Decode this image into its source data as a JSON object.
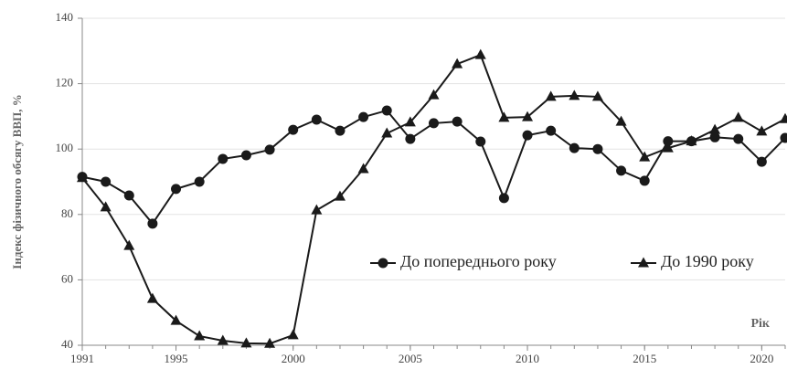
{
  "chart_data": {
    "type": "line",
    "y_label": "Індекс фізичного обсягу ВВП, %",
    "x_label": "Рік",
    "x": [
      1991,
      1992,
      1993,
      1994,
      1995,
      1996,
      1997,
      1998,
      1999,
      2000,
      2001,
      2002,
      2003,
      2004,
      2005,
      2006,
      2007,
      2008,
      2009,
      2010,
      2011,
      2012,
      2013,
      2014,
      2015,
      2016,
      2017,
      2018,
      2019,
      2020,
      2021
    ],
    "series": [
      {
        "name": "До попереднього року",
        "color": "#1a1a1a",
        "marker": "circle",
        "values": [
          91.5,
          90,
          85.8,
          77.2,
          87.8,
          90,
          97,
          98.1,
          99.8,
          105.9,
          109,
          105.6,
          109.8,
          111.8,
          103.1,
          107.9,
          108.4,
          102.3,
          85,
          104.2,
          105.6,
          100.3,
          100,
          93.4,
          90.3,
          102.4,
          102.4,
          103.6,
          103.1,
          96.1,
          103.4
        ]
      },
      {
        "name": "До 1990 року",
        "color": "#1a1a1a",
        "marker": "triangle",
        "values": [
          91.2,
          82.2,
          70.4,
          54.2,
          47.5,
          42.8,
          41.4,
          40.6,
          40.5,
          43.1,
          81.3,
          85.5,
          93.9,
          104.8,
          108.2,
          116.5,
          126,
          128.8,
          109.6,
          109.8,
          116,
          116.3,
          116,
          108.4,
          97.5,
          100.3,
          102.4,
          105.9,
          109.6,
          105.4,
          109.2
        ]
      }
    ],
    "xlim": [
      1991,
      2021
    ],
    "xticks": [
      1991,
      1995,
      2000,
      2005,
      2010,
      2015,
      2020
    ],
    "ylim": [
      40,
      140
    ],
    "yticks": [
      40,
      60,
      80,
      100,
      120,
      140
    ],
    "grid": true
  }
}
